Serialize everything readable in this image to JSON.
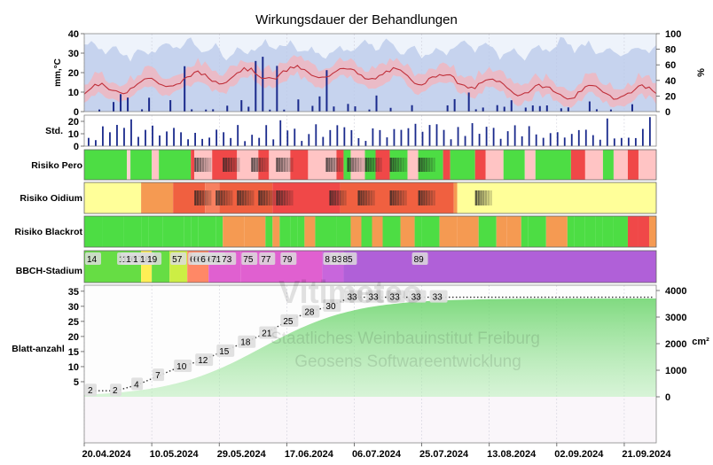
{
  "title": "Wirkungsdauer der Behandlungen",
  "watermark": {
    "line1": "Vitimeteo",
    "line2": "Staatliches Weinbauinstitut Freiburg",
    "line3": "Geosens Softwareentwicklung"
  },
  "colors": {
    "weather_bar": "#1a2a8c",
    "temp_line": "#c0303a",
    "temp_band": "#f2b5bd",
    "humidity_fill": "#b8c8ea",
    "green": "#4ddd44",
    "light_red": "#ffc4c4",
    "red": "#f04848",
    "yellow": "#ffff99",
    "orange": "#f59a52",
    "red_orange": "#f06040",
    "bbch_green": "#66dd44",
    "bbch_pink": "#e060d0",
    "bbch_purple": "#b060d8",
    "leaf_green": "#44dd55"
  },
  "chart_data": {
    "type": "dashboard",
    "x_tick_labels": [
      "20.04.2024",
      "10.05.2024",
      "29.05.2024",
      "17.06.2024",
      "06.07.2024",
      "25.07.2024",
      "13.08.2024",
      "02.09.2024",
      "21.09.2024"
    ],
    "weather": {
      "ylabel": "mm,°C",
      "y2label": "%",
      "left_ticks": [
        "40",
        "30",
        "20",
        "10",
        "0"
      ],
      "right_ticks": [
        "100",
        "80",
        "60",
        "40",
        "20",
        "0"
      ],
      "ylim": [
        0,
        40
      ],
      "y2lim": [
        0,
        100
      ]
    },
    "sunshine": {
      "ylabel": "Std.",
      "ticks": [
        "20",
        "10",
        "0"
      ],
      "ylim": [
        0,
        25
      ]
    },
    "risk_rows": [
      {
        "label": "Risiko Pero"
      },
      {
        "label": "Risiko Oidium"
      },
      {
        "label": "Risiko Blackrot"
      }
    ],
    "bbch": {
      "label": "BBCH-Stadium",
      "stages": [
        {
          "day": 0,
          "label": "14"
        },
        {
          "day": 9,
          "label": "15"
        },
        {
          "day": 10,
          "label": "16"
        },
        {
          "day": 11,
          "label": "16"
        },
        {
          "day": 13,
          "label": "17"
        },
        {
          "day": 15,
          "label": "18"
        },
        {
          "day": 17,
          "label": "19"
        },
        {
          "day": 24,
          "label": "57"
        },
        {
          "day": 29,
          "label": "61"
        },
        {
          "day": 30,
          "label": "63"
        },
        {
          "day": 31,
          "label": "65"
        },
        {
          "day": 32,
          "label": "67"
        },
        {
          "day": 34,
          "label": "69"
        },
        {
          "day": 35,
          "label": "71"
        },
        {
          "day": 38,
          "label": "73"
        },
        {
          "day": 44,
          "label": "75"
        },
        {
          "day": 49,
          "label": "77"
        },
        {
          "day": 55,
          "label": "79"
        },
        {
          "day": 67,
          "label": "81"
        },
        {
          "day": 69,
          "label": "83"
        },
        {
          "day": 72,
          "label": "85"
        },
        {
          "day": 92,
          "label": "89"
        }
      ]
    },
    "leaves": {
      "ylabel": "Blatt-anzahl",
      "y2label": "cm²",
      "left_ticks": [
        "35",
        "30",
        "25",
        "20",
        "15",
        "10",
        "5"
      ],
      "right_ticks": [
        "4000",
        "3000",
        "2000",
        "1000",
        "0"
      ],
      "ylim": [
        0,
        37
      ],
      "y2lim": [
        0,
        4200
      ],
      "count_labels": [
        {
          "day": 0,
          "value": 2,
          "label": "2"
        },
        {
          "day": 7,
          "value": 2,
          "label": "2"
        },
        {
          "day": 13,
          "value": 4,
          "label": "4"
        },
        {
          "day": 19,
          "value": 7,
          "label": "7"
        },
        {
          "day": 25,
          "value": 10,
          "label": "10"
        },
        {
          "day": 31,
          "value": 12,
          "label": "12"
        },
        {
          "day": 37,
          "value": 15,
          "label": "15"
        },
        {
          "day": 43,
          "value": 18,
          "label": "18"
        },
        {
          "day": 49,
          "value": 21,
          "label": "21"
        },
        {
          "day": 55,
          "value": 25,
          "label": "25"
        },
        {
          "day": 61,
          "value": 28,
          "label": "28"
        },
        {
          "day": 67,
          "value": 30,
          "label": "30"
        },
        {
          "day": 73,
          "value": 33,
          "label": "33"
        },
        {
          "day": 79,
          "value": 33,
          "label": "33"
        },
        {
          "day": 85,
          "value": 33,
          "label": "33"
        },
        {
          "day": 91,
          "value": 33,
          "label": "33"
        },
        {
          "day": 97,
          "value": 33,
          "label": "33"
        }
      ]
    }
  }
}
